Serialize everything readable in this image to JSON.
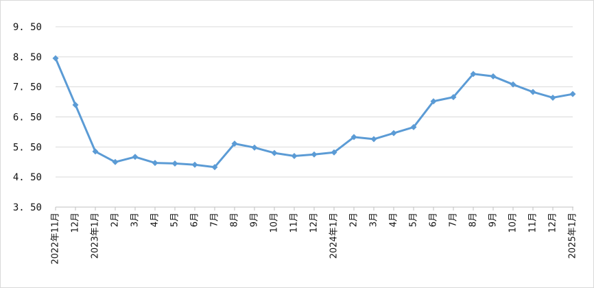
{
  "chart_data": {
    "type": "line",
    "title": "",
    "xlabel": "",
    "ylabel": "",
    "ylim": [
      3.5,
      9.5
    ],
    "yticks": [
      "3. 50",
      "4. 50",
      "5. 50",
      "6. 50",
      "7. 50",
      "8. 50",
      "9. 50"
    ],
    "grid": true,
    "legend": "none",
    "categories": [
      "2022年11月",
      "12月",
      "2023年1月",
      "2月",
      "3月",
      "4月",
      "5月",
      "6月",
      "7月",
      "8月",
      "9月",
      "10月",
      "11月",
      "12月",
      "2024年1月",
      "2月",
      "3月",
      "4月",
      "5月",
      "6月",
      "7月",
      "8月",
      "9月",
      "10月",
      "11月",
      "12月",
      "2025年1月"
    ],
    "series": [
      {
        "values": [
          8.45,
          6.9,
          5.35,
          5.0,
          5.17,
          4.97,
          4.95,
          4.91,
          4.83,
          5.61,
          5.48,
          5.3,
          5.2,
          5.25,
          5.32,
          5.83,
          5.76,
          5.96,
          6.16,
          7.02,
          7.16,
          7.93,
          7.85,
          7.58,
          7.33,
          7.14,
          7.26
        ],
        "color": "#5b9bd5"
      }
    ]
  }
}
